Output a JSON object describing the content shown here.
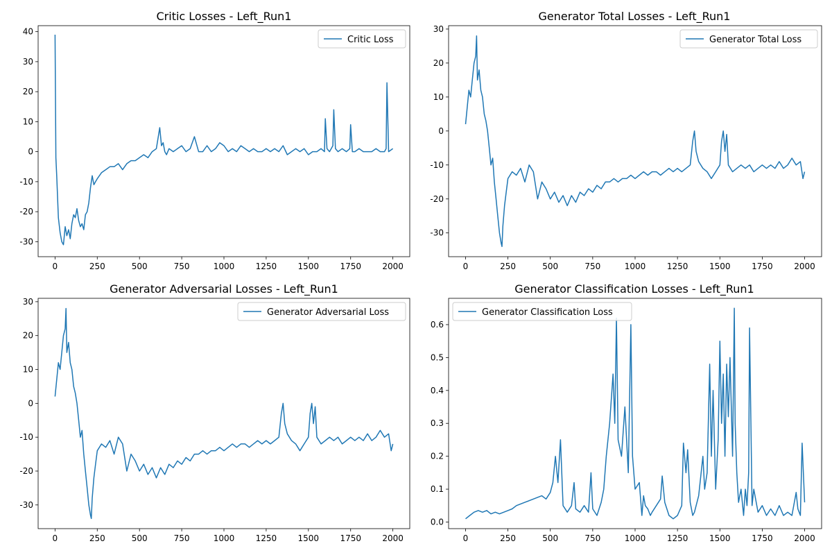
{
  "figure": {
    "background": "#ffffff",
    "line_color": "#1f77b4"
  },
  "chart_data": [
    {
      "type": "line",
      "title": "Critic Losses - Left_Run1",
      "xlabel": "",
      "ylabel": "",
      "xlim": [
        -100,
        2100
      ],
      "ylim": [
        -35,
        42
      ],
      "xticks": [
        0,
        250,
        500,
        750,
        1000,
        1250,
        1500,
        1750,
        2000
      ],
      "yticks": [
        -30,
        -20,
        -10,
        0,
        10,
        20,
        30,
        40
      ],
      "legend_position": "top-right",
      "grid": false,
      "series": [
        {
          "name": "Critic Loss",
          "color": "#1f77b4",
          "x": [
            0,
            5,
            10,
            20,
            30,
            40,
            50,
            60,
            70,
            80,
            90,
            100,
            110,
            120,
            130,
            140,
            150,
            160,
            170,
            180,
            190,
            200,
            210,
            220,
            230,
            240,
            250,
            275,
            300,
            325,
            350,
            375,
            400,
            425,
            450,
            475,
            500,
            525,
            550,
            575,
            600,
            620,
            630,
            640,
            650,
            660,
            675,
            700,
            725,
            750,
            775,
            800,
            825,
            850,
            875,
            900,
            925,
            950,
            975,
            1000,
            1025,
            1050,
            1075,
            1100,
            1125,
            1150,
            1175,
            1200,
            1225,
            1250,
            1275,
            1300,
            1325,
            1350,
            1375,
            1400,
            1425,
            1450,
            1475,
            1500,
            1525,
            1550,
            1575,
            1595,
            1600,
            1610,
            1625,
            1645,
            1650,
            1660,
            1675,
            1700,
            1725,
            1745,
            1750,
            1760,
            1775,
            1800,
            1825,
            1850,
            1875,
            1900,
            1925,
            1950,
            1960,
            1965,
            1975,
            2000
          ],
          "values": [
            39,
            -2,
            -8,
            -22,
            -27,
            -30,
            -31,
            -25,
            -28,
            -26,
            -29,
            -24,
            -21,
            -22,
            -19,
            -23,
            -25,
            -24,
            -26,
            -21,
            -20,
            -17,
            -12,
            -8,
            -11,
            -10,
            -9,
            -7,
            -6,
            -5,
            -5,
            -4,
            -6,
            -4,
            -3,
            -3,
            -2,
            -1,
            -2,
            0,
            1,
            8,
            2,
            3,
            0,
            -1,
            1,
            0,
            1,
            2,
            0,
            1,
            5,
            0,
            0,
            2,
            0,
            1,
            3,
            2,
            0,
            1,
            0,
            2,
            1,
            0,
            1,
            0,
            0,
            1,
            0,
            1,
            0,
            2,
            -1,
            0,
            1,
            0,
            1,
            -1,
            0,
            0,
            1,
            0,
            11,
            1,
            0,
            2,
            14,
            1,
            0,
            1,
            0,
            1,
            9,
            0,
            0,
            1,
            0,
            0,
            0,
            1,
            0,
            0,
            1,
            23,
            0,
            1
          ]
        }
      ]
    },
    {
      "type": "line",
      "title": "Generator Total Losses - Left_Run1",
      "xlabel": "",
      "ylabel": "",
      "xlim": [
        -100,
        2100
      ],
      "ylim": [
        -37,
        31
      ],
      "xticks": [
        0,
        250,
        500,
        750,
        1000,
        1250,
        1500,
        1750,
        2000
      ],
      "yticks": [
        -30,
        -20,
        -10,
        0,
        10,
        20,
        30
      ],
      "legend_position": "top-right",
      "grid": false,
      "series": [
        {
          "name": "Generator Total Loss",
          "color": "#1f77b4",
          "x": [
            0,
            10,
            20,
            30,
            40,
            50,
            60,
            65,
            70,
            80,
            90,
            100,
            110,
            120,
            130,
            140,
            150,
            160,
            170,
            180,
            190,
            200,
            210,
            215,
            220,
            230,
            240,
            250,
            275,
            300,
            325,
            350,
            375,
            400,
            425,
            450,
            475,
            500,
            525,
            550,
            575,
            600,
            625,
            650,
            675,
            700,
            725,
            750,
            775,
            800,
            825,
            850,
            875,
            900,
            925,
            950,
            975,
            1000,
            1025,
            1050,
            1075,
            1100,
            1125,
            1150,
            1175,
            1200,
            1225,
            1250,
            1275,
            1300,
            1325,
            1340,
            1350,
            1360,
            1375,
            1400,
            1425,
            1450,
            1475,
            1500,
            1510,
            1520,
            1530,
            1540,
            1550,
            1575,
            1600,
            1625,
            1650,
            1675,
            1700,
            1725,
            1750,
            1775,
            1800,
            1825,
            1850,
            1875,
            1900,
            1925,
            1950,
            1975,
            1990,
            2000
          ],
          "values": [
            2,
            7,
            12,
            10,
            15,
            20,
            22,
            28,
            15,
            18,
            12,
            10,
            5,
            3,
            0,
            -5,
            -10,
            -8,
            -15,
            -20,
            -25,
            -30,
            -33,
            -34,
            -28,
            -22,
            -18,
            -14,
            -12,
            -13,
            -11,
            -15,
            -10,
            -12,
            -20,
            -15,
            -17,
            -20,
            -18,
            -21,
            -19,
            -22,
            -19,
            -21,
            -18,
            -19,
            -17,
            -18,
            -16,
            -17,
            -15,
            -15,
            -14,
            -15,
            -14,
            -14,
            -13,
            -14,
            -13,
            -12,
            -13,
            -12,
            -12,
            -13,
            -12,
            -11,
            -12,
            -11,
            -12,
            -11,
            -10,
            -3,
            0,
            -6,
            -9,
            -11,
            -12,
            -14,
            -12,
            -10,
            -3,
            0,
            -6,
            -1,
            -10,
            -12,
            -11,
            -10,
            -11,
            -10,
            -12,
            -11,
            -10,
            -11,
            -10,
            -11,
            -9,
            -11,
            -10,
            -8,
            -10,
            -9,
            -14,
            -12
          ]
        }
      ]
    },
    {
      "type": "line",
      "title": "Generator Adversarial Losses - Left_Run1",
      "xlabel": "",
      "ylabel": "",
      "xlim": [
        -100,
        2100
      ],
      "ylim": [
        -37,
        31
      ],
      "xticks": [
        0,
        250,
        500,
        750,
        1000,
        1250,
        1500,
        1750,
        2000
      ],
      "yticks": [
        -30,
        -20,
        -10,
        0,
        10,
        20,
        30
      ],
      "legend_position": "top-right",
      "grid": false,
      "series": [
        {
          "name": "Generator Adversarial Loss",
          "color": "#1f77b4",
          "x": [
            0,
            10,
            20,
            30,
            40,
            50,
            60,
            65,
            70,
            80,
            90,
            100,
            110,
            120,
            130,
            140,
            150,
            160,
            170,
            180,
            190,
            200,
            210,
            215,
            220,
            230,
            240,
            250,
            275,
            300,
            325,
            350,
            375,
            400,
            425,
            450,
            475,
            500,
            525,
            550,
            575,
            600,
            625,
            650,
            675,
            700,
            725,
            750,
            775,
            800,
            825,
            850,
            875,
            900,
            925,
            950,
            975,
            1000,
            1025,
            1050,
            1075,
            1100,
            1125,
            1150,
            1175,
            1200,
            1225,
            1250,
            1275,
            1300,
            1325,
            1340,
            1350,
            1360,
            1375,
            1400,
            1425,
            1450,
            1475,
            1500,
            1510,
            1520,
            1530,
            1540,
            1550,
            1575,
            1600,
            1625,
            1650,
            1675,
            1700,
            1725,
            1750,
            1775,
            1800,
            1825,
            1850,
            1875,
            1900,
            1925,
            1950,
            1975,
            1990,
            2000
          ],
          "values": [
            2,
            7,
            12,
            10,
            15,
            20,
            22,
            28,
            15,
            18,
            12,
            10,
            5,
            3,
            0,
            -5,
            -10,
            -8,
            -15,
            -20,
            -25,
            -30,
            -33,
            -34,
            -28,
            -22,
            -18,
            -14,
            -12,
            -13,
            -11,
            -15,
            -10,
            -12,
            -20,
            -15,
            -17,
            -20,
            -18,
            -21,
            -19,
            -22,
            -19,
            -21,
            -18,
            -19,
            -17,
            -18,
            -16,
            -17,
            -15,
            -15,
            -14,
            -15,
            -14,
            -14,
            -13,
            -14,
            -13,
            -12,
            -13,
            -12,
            -12,
            -13,
            -12,
            -11,
            -12,
            -11,
            -12,
            -11,
            -10,
            -3,
            0,
            -6,
            -9,
            -11,
            -12,
            -14,
            -12,
            -10,
            -3,
            0,
            -6,
            -1,
            -10,
            -12,
            -11,
            -10,
            -11,
            -10,
            -12,
            -11,
            -10,
            -11,
            -10,
            -11,
            -9,
            -11,
            -10,
            -8,
            -10,
            -9,
            -14,
            -12
          ]
        }
      ]
    },
    {
      "type": "line",
      "title": "Generator Classification Losses - Left_Run1",
      "xlabel": "",
      "ylabel": "",
      "xlim": [
        -100,
        2100
      ],
      "ylim": [
        -0.02,
        0.68
      ],
      "xticks": [
        0,
        250,
        500,
        750,
        1000,
        1250,
        1500,
        1750,
        2000
      ],
      "yticks": [
        0.0,
        0.1,
        0.2,
        0.3,
        0.4,
        0.5,
        0.6
      ],
      "legend_position": "top-left",
      "grid": false,
      "series": [
        {
          "name": "Generator Classification Loss",
          "color": "#1f77b4",
          "x": [
            0,
            25,
            50,
            75,
            100,
            125,
            150,
            175,
            200,
            225,
            250,
            275,
            300,
            325,
            350,
            375,
            400,
            425,
            450,
            475,
            500,
            515,
            530,
            545,
            560,
            575,
            600,
            625,
            640,
            650,
            675,
            700,
            725,
            740,
            750,
            775,
            800,
            815,
            830,
            850,
            870,
            880,
            890,
            900,
            920,
            940,
            960,
            975,
            985,
            1000,
            1025,
            1040,
            1050,
            1060,
            1075,
            1090,
            1100,
            1125,
            1150,
            1160,
            1175,
            1200,
            1225,
            1250,
            1275,
            1285,
            1300,
            1310,
            1325,
            1340,
            1350,
            1375,
            1400,
            1410,
            1425,
            1440,
            1450,
            1460,
            1475,
            1490,
            1500,
            1510,
            1520,
            1530,
            1540,
            1550,
            1560,
            1575,
            1585,
            1590,
            1600,
            1610,
            1625,
            1640,
            1650,
            1660,
            1670,
            1675,
            1690,
            1700,
            1725,
            1750,
            1775,
            1800,
            1825,
            1850,
            1875,
            1900,
            1925,
            1950,
            1960,
            1975,
            1985,
            2000
          ],
          "values": [
            0.01,
            0.02,
            0.03,
            0.035,
            0.03,
            0.035,
            0.025,
            0.03,
            0.025,
            0.03,
            0.035,
            0.04,
            0.05,
            0.055,
            0.06,
            0.065,
            0.07,
            0.075,
            0.08,
            0.07,
            0.09,
            0.12,
            0.2,
            0.12,
            0.25,
            0.05,
            0.03,
            0.05,
            0.12,
            0.04,
            0.03,
            0.05,
            0.03,
            0.15,
            0.04,
            0.02,
            0.06,
            0.1,
            0.2,
            0.3,
            0.45,
            0.3,
            0.62,
            0.25,
            0.2,
            0.35,
            0.15,
            0.6,
            0.2,
            0.1,
            0.12,
            0.02,
            0.08,
            0.05,
            0.04,
            0.02,
            0.03,
            0.05,
            0.07,
            0.14,
            0.06,
            0.02,
            0.01,
            0.02,
            0.05,
            0.24,
            0.15,
            0.22,
            0.06,
            0.02,
            0.03,
            0.08,
            0.2,
            0.1,
            0.15,
            0.48,
            0.2,
            0.4,
            0.1,
            0.25,
            0.55,
            0.3,
            0.45,
            0.2,
            0.48,
            0.32,
            0.5,
            0.2,
            0.65,
            0.3,
            0.15,
            0.06,
            0.1,
            0.02,
            0.1,
            0.05,
            0.15,
            0.59,
            0.05,
            0.1,
            0.03,
            0.05,
            0.02,
            0.04,
            0.02,
            0.05,
            0.02,
            0.03,
            0.02,
            0.09,
            0.04,
            0.02,
            0.24,
            0.06
          ]
        }
      ]
    }
  ]
}
